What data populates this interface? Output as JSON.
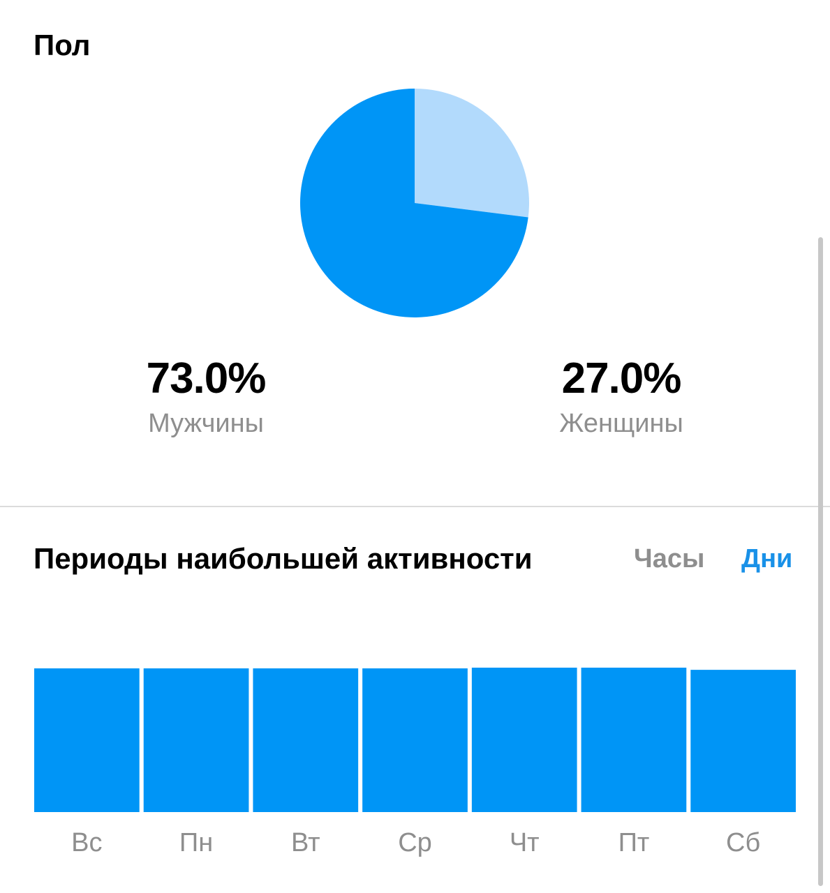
{
  "gender": {
    "title": "Пол",
    "male_value": "73.0%",
    "male_label": "Мужчины",
    "female_value": "27.0%",
    "female_label": "Женщины"
  },
  "activity": {
    "title": "Периоды наибольшей активности",
    "toggle_hours": "Часы",
    "toggle_days": "Дни",
    "active_toggle": "days"
  },
  "colors": {
    "primary": "#0095f6",
    "secondary": "#b2dafc",
    "active_toggle": "#1991e8",
    "muted_text": "#8e8e8e",
    "divider": "#dbdbdb"
  },
  "chart_data": [
    {
      "type": "pie",
      "title": "Пол",
      "categories": [
        "Мужчины",
        "Женщины"
      ],
      "values": [
        73.0,
        27.0
      ],
      "colors": [
        "#0095f6",
        "#b2dafc"
      ]
    },
    {
      "type": "bar",
      "title": "Периоды наибольшей активности",
      "categories": [
        "Вс",
        "Пн",
        "Вт",
        "Ср",
        "Чт",
        "Пт",
        "Сб"
      ],
      "values": [
        99.5,
        99.5,
        99.5,
        99.5,
        100,
        100,
        98.5
      ],
      "ylim": [
        0,
        100
      ],
      "color": "#0095f6",
      "grid": false
    }
  ]
}
